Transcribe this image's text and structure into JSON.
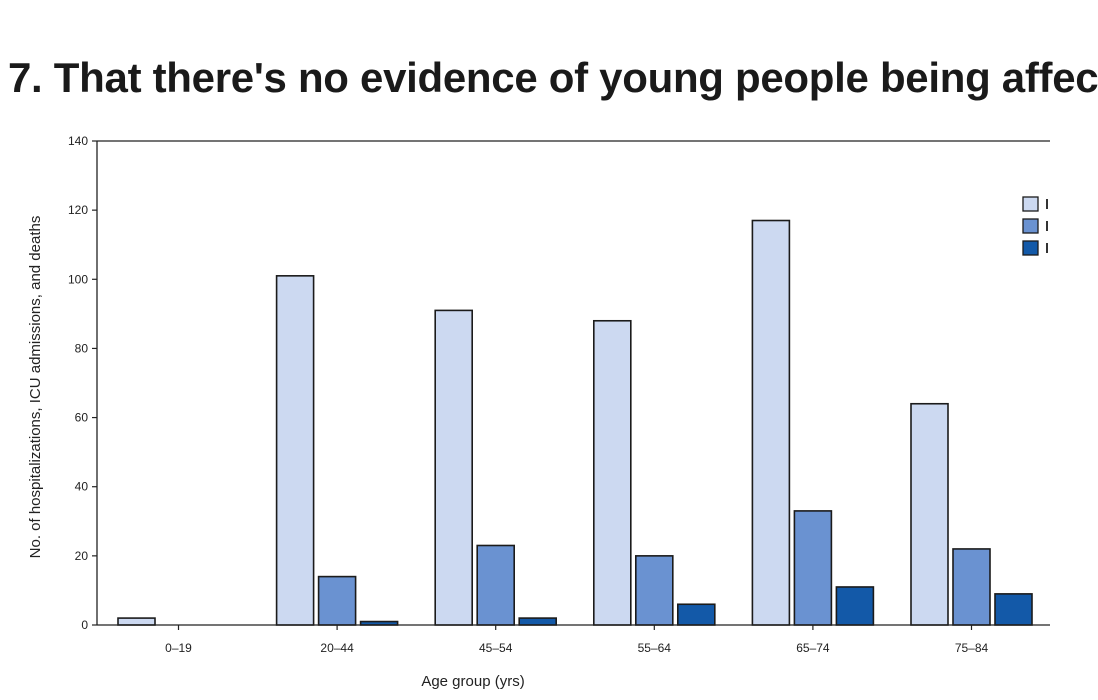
{
  "headline": "7. That there's no evidence of young people being affec",
  "chart_data": {
    "type": "bar",
    "categories": [
      "0–19",
      "20–44",
      "45–54",
      "55–64",
      "65–74",
      "75–84"
    ],
    "series": [
      {
        "values": [
          2,
          101,
          91,
          88,
          117,
          64
        ],
        "color": "#ccd9f1"
      },
      {
        "values": [
          0,
          14,
          23,
          20,
          33,
          22
        ],
        "color": "#6a92d1"
      },
      {
        "values": [
          0,
          1,
          2,
          6,
          11,
          9
        ],
        "color": "#1359a8"
      }
    ],
    "xlabel": "Age group (yrs)",
    "ylabel": "No. of hospitalizations, ICU admissions, and deaths",
    "ylim": [
      0,
      140
    ],
    "yticks": [
      0,
      20,
      40,
      60,
      80,
      100,
      120,
      140
    ],
    "grid": false,
    "legend_position": "top-right"
  }
}
